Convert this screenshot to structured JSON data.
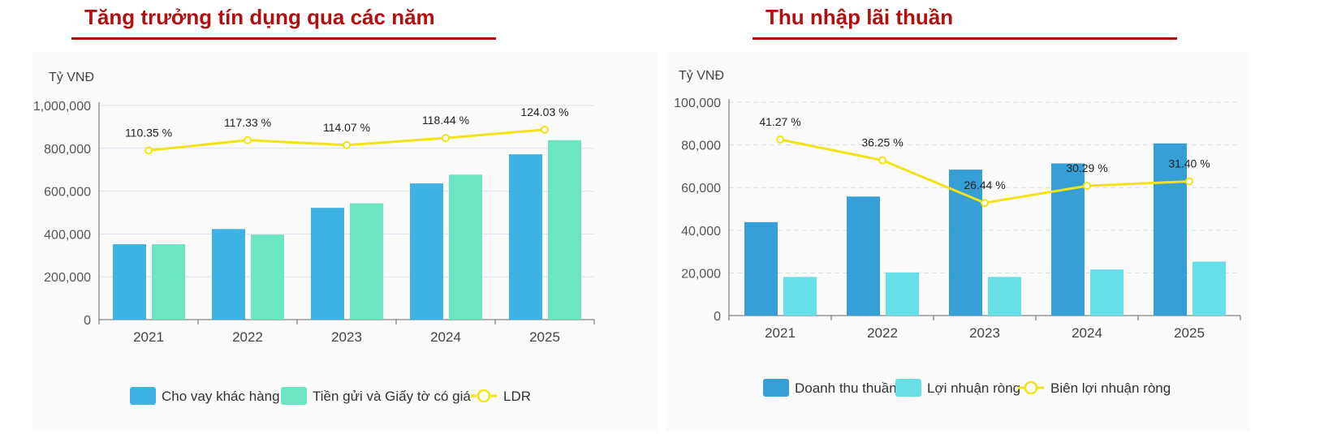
{
  "charts": [
    {
      "title": "Tăng trưởng tín dụng qua các năm",
      "chart_data": {
        "type": "bar",
        "title": "Tăng trưởng tín dụng qua các năm",
        "unit_label": "Tỷ VNĐ",
        "categories": [
          "2021",
          "2022",
          "2023",
          "2024",
          "2025"
        ],
        "ylim": [
          0,
          1000000
        ],
        "y_ticks": [
          0,
          200000,
          400000,
          600000,
          800000,
          1000000
        ],
        "y_tick_labels": [
          "0",
          "200,000",
          "400,000",
          "600,000",
          "800,000",
          "1,000,000"
        ],
        "grid": true,
        "legend_position": "bottom",
        "series": [
          {
            "name": "Cho vay khác hàng",
            "type": "bar",
            "color": "#3fb2e4",
            "values": [
              352000,
              423000,
              522000,
              636000,
              772000
            ]
          },
          {
            "name": "Tiền gửi và Giấy tờ có giá",
            "type": "bar",
            "color": "#6ce5c2",
            "values": [
              352000,
              397000,
              543000,
              677000,
              838000
            ]
          },
          {
            "name": "LDR",
            "type": "line",
            "color": "#f0e414",
            "values": [
              110.35,
              117.33,
              114.07,
              118.44,
              124.03
            ],
            "labels": [
              "110.35 %",
              "117.33 %",
              "114.07 %",
              "118.44 %",
              "124.03 %"
            ],
            "plot_positions": [
              790000,
              838000,
              815000,
              848000,
              887000
            ]
          }
        ]
      }
    },
    {
      "title": "Thu nhập lãi thuần",
      "chart_data": {
        "type": "bar",
        "title": "Thu nhập lãi thuần",
        "unit_label": "Tỷ VNĐ",
        "categories": [
          "2021",
          "2022",
          "2023",
          "2024",
          "2025"
        ],
        "ylim": [
          0,
          100000
        ],
        "y_ticks": [
          0,
          20000,
          40000,
          60000,
          80000,
          100000
        ],
        "y_tick_labels": [
          "0",
          "20,000",
          "40,000",
          "60,000",
          "80,000",
          "100,000"
        ],
        "grid": true,
        "legend_position": "bottom",
        "series": [
          {
            "name": "Doanh thu thuần",
            "type": "bar",
            "color": "#379fd8",
            "values": [
              43800,
              55800,
              68400,
              71300,
              80700
            ]
          },
          {
            "name": "Lợi nhuận ròng",
            "type": "bar",
            "color": "#67dfe6",
            "values": [
              18100,
              20200,
              18100,
              21600,
              25300
            ]
          },
          {
            "name": "Biên lợi nhuận ròng",
            "type": "line",
            "color": "#f0e414",
            "values": [
              41.27,
              36.25,
              26.44,
              30.29,
              31.4
            ],
            "labels": [
              "41.27 %",
              "36.25 %",
              "26.44 %",
              "30.29 %",
              "31.40 %"
            ],
            "plot_positions": [
              82500,
              72800,
              52800,
              60800,
              62900
            ]
          }
        ]
      }
    }
  ]
}
